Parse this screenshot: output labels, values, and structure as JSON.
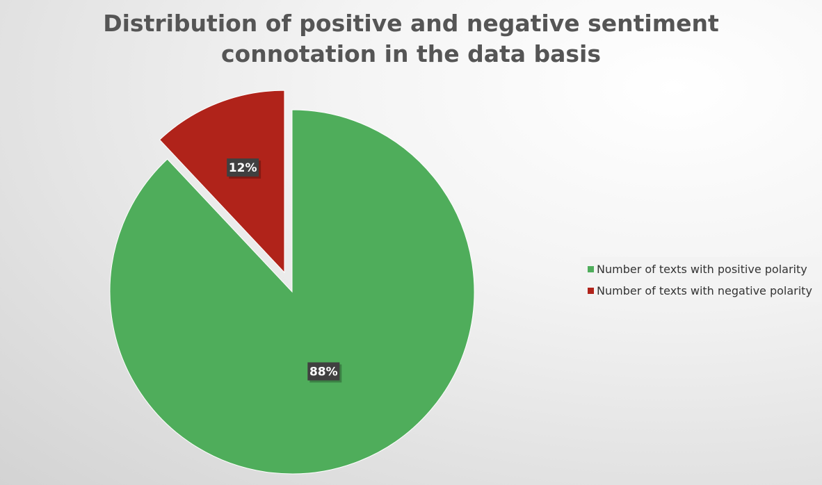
{
  "chart_data": {
    "type": "pie",
    "title": [
      "Distribution of positive and negative sentiment",
      "connotation in the data basis"
    ],
    "slices": [
      {
        "label": "Number of texts with positive polarity",
        "value": 88,
        "data_label": "88%",
        "color": "#4fad5b"
      },
      {
        "label": "Number of texts with negative polarity",
        "value": 12,
        "data_label": "12%",
        "color": "#b0231a"
      }
    ],
    "legend_position": "right"
  }
}
